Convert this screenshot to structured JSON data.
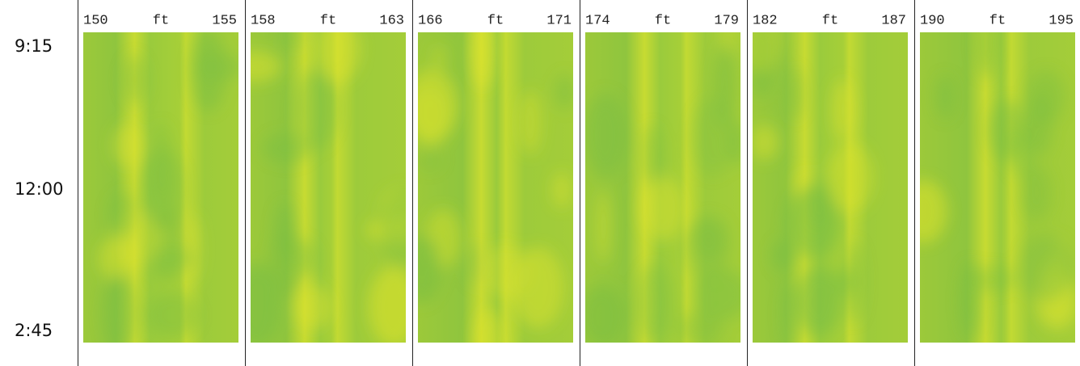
{
  "time_labels": [
    "9:15",
    "12:00",
    "2:45"
  ],
  "panels": [
    {
      "start": "150",
      "unit": "ft",
      "end": "155"
    },
    {
      "start": "158",
      "unit": "ft",
      "end": "163"
    },
    {
      "start": "166",
      "unit": "ft",
      "end": "171"
    },
    {
      "start": "174",
      "unit": "ft",
      "end": "179"
    },
    {
      "start": "182",
      "unit": "ft",
      "end": "187"
    },
    {
      "start": "190",
      "unit": "ft",
      "end": "195"
    }
  ]
}
